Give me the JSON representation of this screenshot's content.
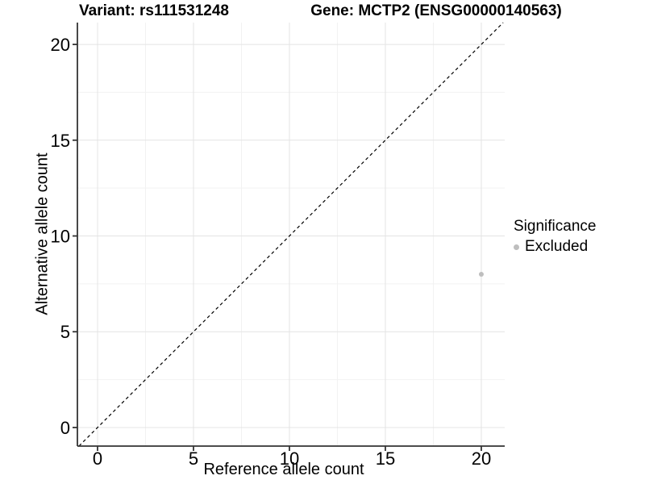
{
  "chart_data": {
    "type": "scatter",
    "title_left": "Variant: rs111531248",
    "title_right": "Gene: MCTP2 (ENSG00000140563)",
    "xlabel": "Reference allele count",
    "ylabel": "Alternative allele count",
    "xlim": [
      -1.05,
      21.22
    ],
    "ylim": [
      -0.97,
      21.14
    ],
    "x_ticks": [
      0,
      5,
      10,
      15,
      20
    ],
    "y_ticks": [
      0,
      5,
      10,
      15,
      20
    ],
    "x_minor_ticks": [
      2.5,
      7.5,
      12.5,
      17.5
    ],
    "y_minor_ticks": [
      2.5,
      7.5,
      12.5,
      17.5
    ],
    "grid": "major and minor gridlines, light gray on white panel",
    "identity_line": {
      "style": "dashed",
      "slope": 1,
      "intercept": 0,
      "color": "#000000"
    },
    "series": [
      {
        "name": "Excluded",
        "color": "#bebebe",
        "points": [
          {
            "x": 20,
            "y": 8
          }
        ]
      }
    ],
    "legend": {
      "title": "Significance",
      "position": "right",
      "items": [
        {
          "label": "Excluded",
          "color": "#bebebe"
        }
      ]
    }
  },
  "colors": {
    "background": "#ffffff",
    "grid_major": "#e4e4e4",
    "grid_minor": "#f2f2f2",
    "axis": "#333333",
    "identity_line": "#000000",
    "point": "#bebebe",
    "text": "#000000"
  }
}
